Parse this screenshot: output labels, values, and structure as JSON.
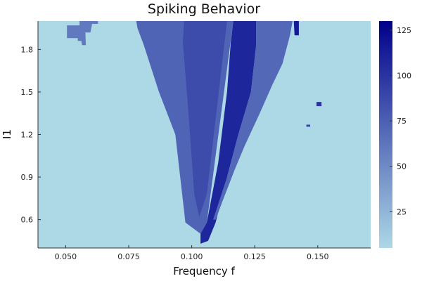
{
  "chart_data": {
    "type": "heatmap",
    "title": "Spiking Behavior",
    "xlabel": "Frequency f",
    "ylabel": "I1",
    "xlim": [
      0.039,
      0.171
    ],
    "ylim": [
      0.4,
      2.0
    ],
    "xticks": [
      0.05,
      0.075,
      0.1,
      0.125,
      0.15
    ],
    "xtick_labels": [
      "0.050",
      "0.075",
      "0.100",
      "0.125",
      "0.150"
    ],
    "yticks": [
      0.6,
      0.9,
      1.2,
      1.5,
      1.8
    ],
    "ytick_labels": [
      "0.6",
      "0.9",
      "1.2",
      "1.5",
      "1.8"
    ],
    "grid": false,
    "colorbar": {
      "min": 5,
      "max": 130,
      "ticks": [
        25,
        50,
        75,
        100,
        125
      ],
      "tick_labels": [
        "25",
        "50",
        "75",
        "100",
        "125"
      ],
      "color_low": "#add8e6",
      "color_high": "#00008b"
    },
    "background_value": 0,
    "regions": [
      {
        "value": 60,
        "polygon": [
          [
            0.0555,
            2.0
          ],
          [
            0.0628,
            2.0
          ],
          [
            0.0628,
            1.98
          ],
          [
            0.0605,
            1.98
          ],
          [
            0.0598,
            1.92
          ],
          [
            0.0578,
            1.92
          ],
          [
            0.058,
            1.83
          ],
          [
            0.0565,
            1.83
          ],
          [
            0.0562,
            1.86
          ],
          [
            0.0548,
            1.86
          ],
          [
            0.0548,
            1.88
          ],
          [
            0.0505,
            1.88
          ],
          [
            0.0505,
            1.97
          ],
          [
            0.0555,
            1.97
          ]
        ]
      },
      {
        "value": 72,
        "polygon": [
          [
            0.078,
            2.0
          ],
          [
            0.1165,
            2.0
          ],
          [
            0.106,
            0.58
          ],
          [
            0.1035,
            0.5
          ],
          [
            0.0975,
            0.58
          ],
          [
            0.0935,
            1.2
          ],
          [
            0.087,
            1.5
          ],
          [
            0.081,
            1.83
          ],
          [
            0.0785,
            1.95
          ]
        ]
      },
      {
        "value": 86,
        "polygon": [
          [
            0.097,
            2.0
          ],
          [
            0.114,
            2.0
          ],
          [
            0.106,
            0.78
          ],
          [
            0.103,
            0.62
          ],
          [
            0.101,
            0.78
          ],
          [
            0.0985,
            1.4
          ],
          [
            0.0965,
            1.85
          ]
        ]
      },
      {
        "value": 108,
        "polygon": [
          [
            0.1165,
            2.0
          ],
          [
            0.1255,
            2.0
          ],
          [
            0.1255,
            1.82
          ],
          [
            0.1235,
            1.5
          ],
          [
            0.1185,
            1.2
          ],
          [
            0.114,
            0.9
          ],
          [
            0.1095,
            0.58
          ],
          [
            0.1065,
            0.45
          ],
          [
            0.1035,
            0.43
          ],
          [
            0.1035,
            0.5
          ],
          [
            0.106,
            0.58
          ],
          [
            0.1105,
            1.0
          ],
          [
            0.114,
            1.5
          ],
          [
            0.1155,
            1.85
          ]
        ]
      },
      {
        "value": 70,
        "polygon": [
          [
            0.1255,
            2.0
          ],
          [
            0.14,
            2.0
          ],
          [
            0.139,
            1.9
          ],
          [
            0.136,
            1.7
          ],
          [
            0.132,
            1.55
          ],
          [
            0.127,
            1.35
          ],
          [
            0.121,
            1.12
          ],
          [
            0.117,
            0.95
          ],
          [
            0.112,
            0.72
          ],
          [
            0.1095,
            0.6
          ],
          [
            0.1085,
            0.6
          ],
          [
            0.114,
            0.9
          ],
          [
            0.1185,
            1.2
          ],
          [
            0.1235,
            1.5
          ],
          [
            0.1255,
            1.82
          ]
        ]
      },
      {
        "value": 115,
        "polygon": [
          [
            0.1405,
            2.0
          ],
          [
            0.1425,
            2.0
          ],
          [
            0.1425,
            1.9
          ],
          [
            0.1408,
            1.9
          ]
        ]
      },
      {
        "value": 100,
        "polygon": [
          [
            0.1495,
            1.43
          ],
          [
            0.1515,
            1.43
          ],
          [
            0.1515,
            1.4
          ],
          [
            0.1495,
            1.4
          ]
        ]
      },
      {
        "value": 90,
        "polygon": [
          [
            0.1455,
            1.27
          ],
          [
            0.147,
            1.27
          ],
          [
            0.147,
            1.255
          ],
          [
            0.1455,
            1.255
          ]
        ]
      }
    ]
  }
}
